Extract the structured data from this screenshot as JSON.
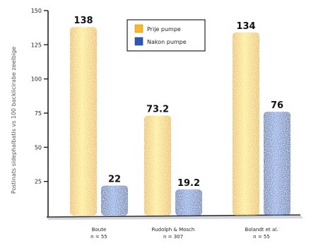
{
  "chart_data": {
    "type": "bar",
    "title": "",
    "xlabel": "",
    "ylabel": "Postinats sidephalbatis vs 100 backlicirabe zeelbige",
    "ylim": [
      0,
      150
    ],
    "yticks": [
      25,
      50,
      75,
      100,
      125,
      150
    ],
    "ytick_labels": [
      "25",
      "50",
      "75",
      "100",
      "125",
      "150"
    ],
    "grid": false,
    "legend_position": "top-center",
    "categories": [
      {
        "line1": "Boute",
        "line2": "n = 55"
      },
      {
        "line1": "Rudolph & Mosch",
        "line2": "n = 307"
      },
      {
        "line1": "Bolandt et al.",
        "line2": "n = 55"
      }
    ],
    "series": [
      {
        "name": "Prije pumpe",
        "color": "#f7b72a",
        "values": [
          138,
          73.2,
          134
        ],
        "data_labels": [
          "138",
          "73.2",
          "134"
        ]
      },
      {
        "name": "Nakon pumpe",
        "color": "#2f58b4",
        "values": [
          22,
          19.2,
          76
        ],
        "data_labels": [
          "22",
          "19.2",
          "76"
        ]
      }
    ]
  }
}
